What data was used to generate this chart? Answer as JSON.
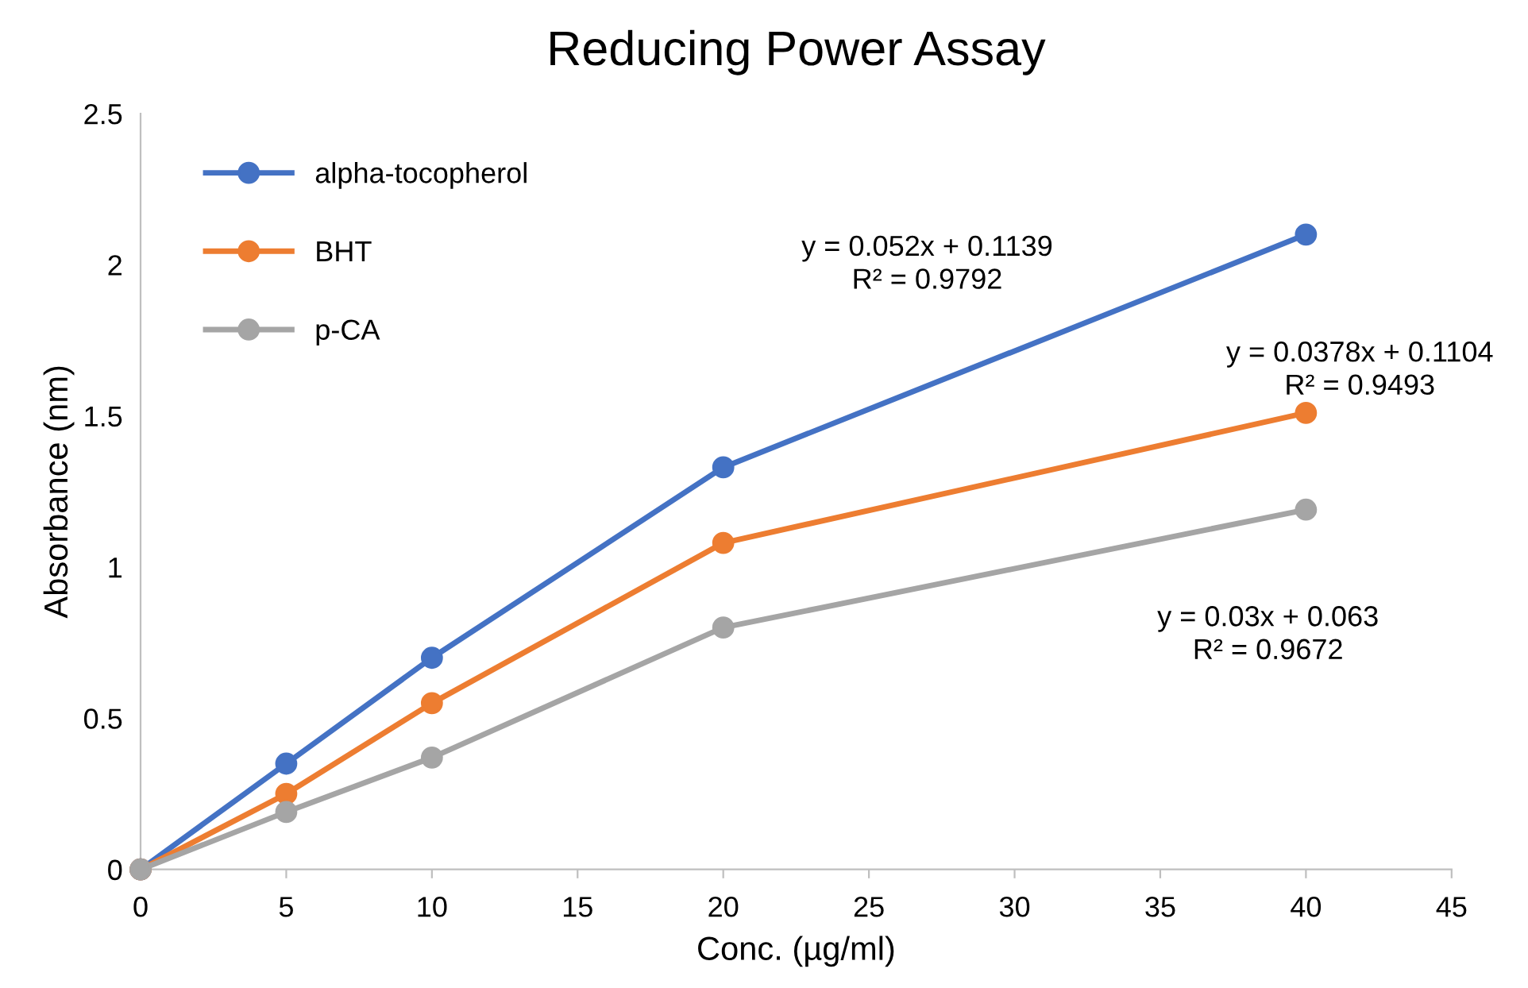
{
  "chart_data": {
    "type": "line",
    "title": "Reducing Power Assay",
    "xlabel": "Conc. (µg/ml)",
    "ylabel": "Absorbance (nm)",
    "x": [
      0,
      5,
      10,
      20,
      40
    ],
    "series": [
      {
        "name": "alpha-tocopherol",
        "color": "#4472c4",
        "values": [
          0,
          0.35,
          0.7,
          1.33,
          2.1
        ]
      },
      {
        "name": "BHT",
        "color": "#ed7d31",
        "values": [
          0,
          0.25,
          0.55,
          1.08,
          1.51
        ]
      },
      {
        "name": "p-CA",
        "color": "#a5a5a5",
        "values": [
          0,
          0.19,
          0.37,
          0.8,
          1.19
        ]
      }
    ],
    "annotations": [
      "y = 0.052x + 0.1139\nR² = 0.9792",
      "y = 0.0378x + 0.1104\nR² = 0.9493",
      "y = 0.03x + 0.063\nR² = 0.9672"
    ],
    "xlim": [
      0,
      45
    ],
    "xticks": [
      0,
      5,
      10,
      15,
      20,
      25,
      30,
      35,
      40,
      45
    ],
    "ylim": [
      0,
      2.5
    ],
    "yticks": [
      0,
      0.5,
      1,
      1.5,
      2,
      2.5
    ],
    "grid": false,
    "legend": "top left",
    "marker": "circle",
    "line_style": "solid"
  }
}
